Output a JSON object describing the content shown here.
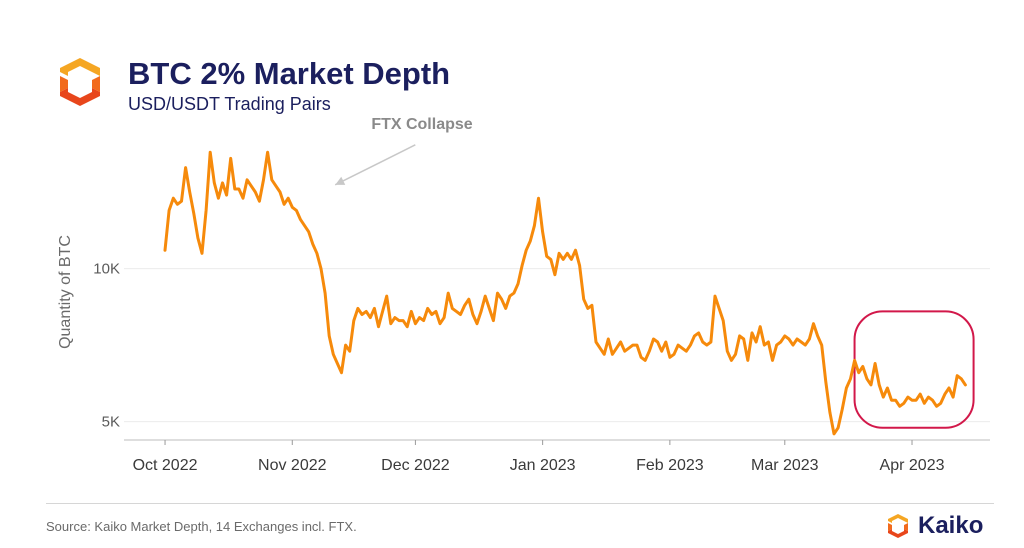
{
  "header": {
    "title": "BTC 2% Market Depth",
    "subtitle": "USD/USDT Trading Pairs"
  },
  "footer": {
    "source": "Source: Kaiko Market Depth, 14 Exchanges incl. FTX.",
    "brand": "Kaiko"
  },
  "colors": {
    "line": "#F68A0B",
    "title": "#1B1F5E",
    "highlight": "#D2184A",
    "annotation": "#8a8a8a"
  },
  "chart_data": {
    "type": "line",
    "title": "BTC 2% Market Depth",
    "subtitle": "USD/USDT Trading Pairs",
    "xlabel": "",
    "ylabel": "Quantity of BTC",
    "x_tick_labels": [
      "Oct 2022",
      "Nov 2022",
      "Dec 2022",
      "Jan 2023",
      "Feb 2023",
      "Mar 2023",
      "Apr 2023"
    ],
    "x_tick_positions": [
      0,
      31,
      61,
      92,
      123,
      151,
      182
    ],
    "y_tick_labels": [
      "5K",
      "10K"
    ],
    "y_tick_values": [
      5000,
      10000
    ],
    "ylim": [
      4400,
      14200
    ],
    "xlim": [
      -10,
      201
    ],
    "grid": "horizontal",
    "annotations": [
      {
        "text": "FTX Collapse",
        "x": 41,
        "y": 12800,
        "arrow_to_x": 40,
        "arrow_to_y": 12800
      }
    ],
    "highlight_region": {
      "x_start": 168,
      "x_end": 197,
      "y_start": 4800,
      "y_end": 8600
    },
    "series": [
      {
        "name": "BTC 2% Market Depth",
        "x": [
          0,
          1,
          2,
          3,
          4,
          5,
          6,
          7,
          8,
          9,
          10,
          11,
          12,
          13,
          14,
          15,
          16,
          17,
          18,
          19,
          20,
          21,
          22,
          23,
          24,
          25,
          26,
          27,
          28,
          29,
          30,
          31,
          32,
          33,
          34,
          35,
          36,
          37,
          38,
          39,
          40,
          41,
          42,
          43,
          44,
          45,
          46,
          47,
          48,
          49,
          50,
          51,
          52,
          53,
          54,
          55,
          56,
          57,
          58,
          59,
          60,
          61,
          62,
          63,
          64,
          65,
          66,
          67,
          68,
          69,
          70,
          71,
          72,
          73,
          74,
          75,
          76,
          77,
          78,
          79,
          80,
          81,
          82,
          83,
          84,
          85,
          86,
          87,
          88,
          89,
          90,
          91,
          92,
          93,
          94,
          95,
          96,
          97,
          98,
          99,
          100,
          101,
          102,
          103,
          104,
          105,
          106,
          107,
          108,
          109,
          110,
          111,
          112,
          113,
          114,
          115,
          116,
          117,
          118,
          119,
          120,
          121,
          122,
          123,
          124,
          125,
          126,
          127,
          128,
          129,
          130,
          131,
          132,
          133,
          134,
          135,
          136,
          137,
          138,
          139,
          140,
          141,
          142,
          143,
          144,
          145,
          146,
          147,
          148,
          149,
          150,
          151,
          152,
          153,
          154,
          155,
          156,
          157,
          158,
          159,
          160,
          161,
          162,
          163,
          164,
          165,
          166,
          167,
          168,
          169,
          170,
          171,
          172,
          173,
          174,
          175,
          176,
          177,
          178,
          179,
          180,
          181,
          182,
          183,
          184,
          185,
          186,
          187,
          188,
          189,
          190,
          191,
          192,
          193,
          194,
          195
        ],
        "y": [
          10600,
          11900,
          12300,
          12100,
          12200,
          13300,
          12500,
          11800,
          11000,
          10500,
          11900,
          13800,
          12800,
          12300,
          12800,
          12400,
          13600,
          12600,
          12600,
          12300,
          12900,
          12700,
          12500,
          12200,
          12900,
          13800,
          12900,
          12700,
          12500,
          12100,
          12300,
          12000,
          11900,
          11600,
          11400,
          11200,
          10800,
          10500,
          10000,
          9200,
          7800,
          7200,
          6900,
          6600,
          7500,
          7300,
          8300,
          8700,
          8500,
          8600,
          8400,
          8700,
          8100,
          8600,
          9100,
          8200,
          8400,
          8300,
          8300,
          8100,
          8600,
          8200,
          8400,
          8300,
          8700,
          8500,
          8600,
          8200,
          8400,
          9200,
          8700,
          8600,
          8500,
          8800,
          9000,
          8500,
          8200,
          8600,
          9100,
          8700,
          8300,
          9200,
          9000,
          8700,
          9100,
          9200,
          9500,
          10100,
          10600,
          10900,
          11400,
          12300,
          11200,
          10400,
          10300,
          9800,
          10500,
          10300,
          10500,
          10300,
          10600,
          10100,
          9000,
          8700,
          8800,
          7600,
          7400,
          7200,
          7700,
          7200,
          7400,
          7600,
          7300,
          7400,
          7500,
          7500,
          7100,
          7000,
          7300,
          7700,
          7600,
          7300,
          7600,
          7100,
          7200,
          7500,
          7400,
          7300,
          7500,
          7800,
          7900,
          7600,
          7500,
          7600,
          9100,
          8700,
          8300,
          7300,
          7000,
          7200,
          7800,
          7700,
          7000,
          7900,
          7600,
          8100,
          7500,
          7600,
          7000,
          7500,
          7600,
          7800,
          7700,
          7500,
          7700,
          7600,
          7500,
          7700,
          8200,
          7800,
          7500,
          6300,
          5300,
          4600,
          4800,
          5400,
          6100,
          6400,
          7000,
          6600,
          6800,
          6400,
          6200,
          6900,
          6200,
          5800,
          6100,
          5700,
          5700,
          5500,
          5600,
          5800,
          5700,
          5700,
          5900,
          5600,
          5800,
          5700,
          5500,
          5600,
          5900,
          6100,
          5800,
          6500,
          6400,
          6200
        ]
      }
    ]
  }
}
